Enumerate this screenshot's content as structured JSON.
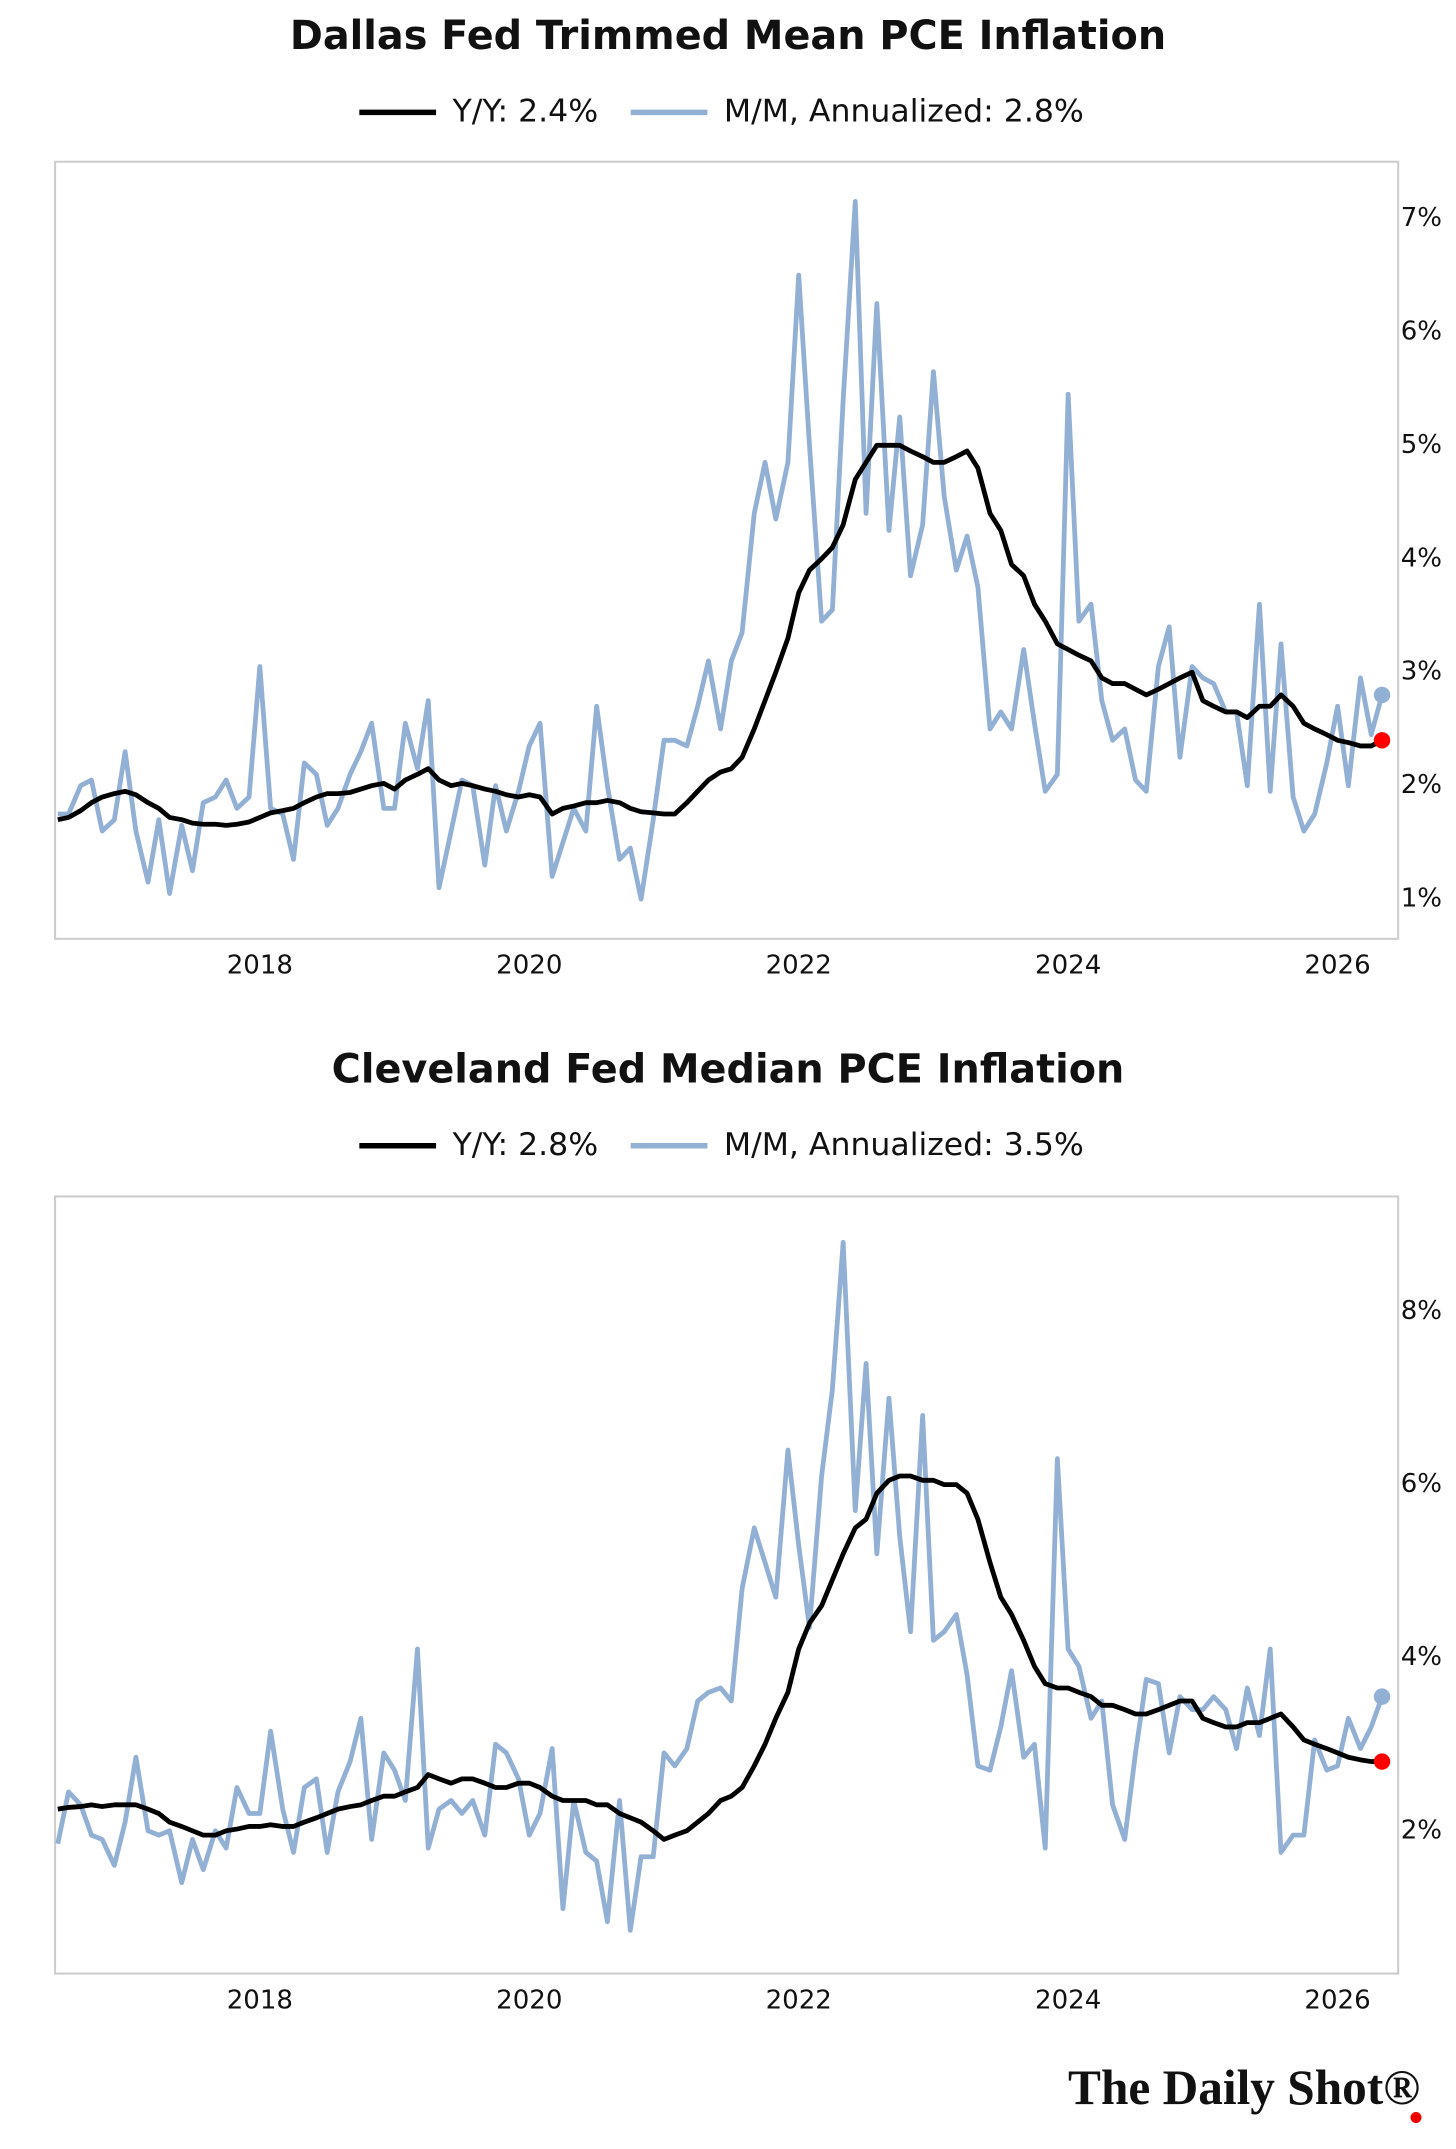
{
  "chart_data": [
    {
      "type": "line",
      "title": "Dallas Fed Trimmed Mean PCE Inflation",
      "grid": false,
      "x": [
        2016.5,
        2016.58,
        2016.67,
        2016.75,
        2016.83,
        2016.92,
        2017.0,
        2017.08,
        2017.17,
        2017.25,
        2017.33,
        2017.42,
        2017.5,
        2017.58,
        2017.67,
        2017.75,
        2017.83,
        2017.92,
        2018.0,
        2018.08,
        2018.17,
        2018.25,
        2018.33,
        2018.42,
        2018.5,
        2018.58,
        2018.67,
        2018.75,
        2018.83,
        2018.92,
        2019.0,
        2019.08,
        2019.17,
        2019.25,
        2019.33,
        2019.42,
        2019.5,
        2019.58,
        2019.67,
        2019.75,
        2019.83,
        2019.92,
        2020.0,
        2020.08,
        2020.17,
        2020.25,
        2020.33,
        2020.42,
        2020.5,
        2020.58,
        2020.67,
        2020.75,
        2020.83,
        2020.92,
        2021.0,
        2021.08,
        2021.17,
        2021.25,
        2021.33,
        2021.42,
        2021.5,
        2021.58,
        2021.67,
        2021.75,
        2021.83,
        2021.92,
        2022.0,
        2022.08,
        2022.17,
        2022.25,
        2022.33,
        2022.42,
        2022.5,
        2022.58,
        2022.67,
        2022.75,
        2022.83,
        2022.92,
        2023.0,
        2023.08,
        2023.17,
        2023.25,
        2023.33,
        2023.42,
        2023.5,
        2023.58,
        2023.67,
        2023.75,
        2023.83,
        2023.92,
        2024.0,
        2024.08,
        2024.17,
        2024.25,
        2024.33,
        2024.42,
        2024.5,
        2024.58,
        2024.67,
        2024.75,
        2024.83,
        2024.92,
        2025.0,
        2025.08,
        2025.17,
        2025.25,
        2025.33,
        2025.42,
        2025.5,
        2025.58,
        2025.67,
        2025.75,
        2025.83,
        2025.92,
        2026.0,
        2026.08,
        2026.17,
        2026.25,
        2026.33
      ],
      "series": [
        {
          "name": "Y/Y: 2.4%",
          "color": "#000000",
          "marker_color": "#ff0000",
          "values": [
            1.7,
            1.72,
            1.78,
            1.85,
            1.9,
            1.93,
            1.95,
            1.92,
            1.85,
            1.8,
            1.72,
            1.7,
            1.67,
            1.66,
            1.66,
            1.65,
            1.66,
            1.68,
            1.72,
            1.76,
            1.78,
            1.8,
            1.85,
            1.9,
            1.93,
            1.93,
            1.94,
            1.97,
            2.0,
            2.02,
            1.97,
            2.05,
            2.1,
            2.15,
            2.05,
            2.0,
            2.02,
            2.0,
            1.97,
            1.95,
            1.92,
            1.9,
            1.92,
            1.9,
            1.75,
            1.8,
            1.82,
            1.85,
            1.85,
            1.87,
            1.85,
            1.8,
            1.77,
            1.76,
            1.75,
            1.75,
            1.85,
            1.95,
            2.05,
            2.12,
            2.15,
            2.25,
            2.5,
            2.75,
            3.0,
            3.3,
            3.7,
            3.9,
            4.0,
            4.1,
            4.3,
            4.7,
            4.85,
            5.0,
            5.0,
            5.0,
            4.95,
            4.9,
            4.85,
            4.85,
            4.9,
            4.95,
            4.8,
            4.4,
            4.25,
            3.95,
            3.85,
            3.6,
            3.45,
            3.25,
            3.2,
            3.15,
            3.1,
            2.95,
            2.9,
            2.9,
            2.85,
            2.8,
            2.85,
            2.9,
            2.95,
            3.0,
            2.75,
            2.7,
            2.65,
            2.65,
            2.6,
            2.7,
            2.7,
            2.8,
            2.7,
            2.55,
            2.5,
            2.45,
            2.4,
            2.38,
            2.35,
            2.35,
            2.4
          ]
        },
        {
          "name": "M/M, Annualized: 2.8%",
          "color": "#92b0d4",
          "marker_color": "#92b0d4",
          "values": [
            1.75,
            1.75,
            2.0,
            2.05,
            1.6,
            1.7,
            2.3,
            1.6,
            1.15,
            1.7,
            1.05,
            1.65,
            1.25,
            1.85,
            1.9,
            2.05,
            1.8,
            1.9,
            3.05,
            1.8,
            1.75,
            1.35,
            2.2,
            2.1,
            1.65,
            1.8,
            2.1,
            2.3,
            2.55,
            1.8,
            1.8,
            2.55,
            2.15,
            2.75,
            1.1,
            1.6,
            2.05,
            2.0,
            1.3,
            2.0,
            1.6,
            1.95,
            2.35,
            2.55,
            1.2,
            1.5,
            1.8,
            1.6,
            2.7,
            2.0,
            1.35,
            1.45,
            1.0,
            1.7,
            2.4,
            2.4,
            2.35,
            2.7,
            3.1,
            2.5,
            3.1,
            3.35,
            4.4,
            4.85,
            4.35,
            4.85,
            6.5,
            5.0,
            3.45,
            3.55,
            5.4,
            7.15,
            4.4,
            6.25,
            4.25,
            5.25,
            3.85,
            4.3,
            5.65,
            4.55,
            3.9,
            4.2,
            3.75,
            2.5,
            2.65,
            2.5,
            3.2,
            2.55,
            1.95,
            2.1,
            5.45,
            3.45,
            3.6,
            2.75,
            2.4,
            2.5,
            2.05,
            1.95,
            3.05,
            3.4,
            2.25,
            3.05,
            2.95,
            2.9,
            2.65,
            2.65,
            2.0,
            3.6,
            1.95,
            3.25,
            1.9,
            1.6,
            1.75,
            2.2,
            2.7,
            2.0,
            2.95,
            2.45,
            2.8
          ]
        }
      ],
      "xlim": [
        2016.48,
        2026.45
      ],
      "xticks": [
        2018,
        2020,
        2022,
        2024,
        2026
      ],
      "ylim": [
        0.65,
        7.5
      ],
      "yticks": [
        {
          "value": 1,
          "label": "1%"
        },
        {
          "value": 2,
          "label": "2%"
        },
        {
          "value": 3,
          "label": "3%"
        },
        {
          "value": 4,
          "label": "4%"
        },
        {
          "value": 5,
          "label": "5%"
        },
        {
          "value": 6,
          "label": "6%"
        },
        {
          "value": 7,
          "label": "7%"
        }
      ]
    },
    {
      "type": "line",
      "title": "Cleveland Fed Median PCE Inflation",
      "grid": false,
      "x": [
        2016.5,
        2016.58,
        2016.67,
        2016.75,
        2016.83,
        2016.92,
        2017.0,
        2017.08,
        2017.17,
        2017.25,
        2017.33,
        2017.42,
        2017.5,
        2017.58,
        2017.67,
        2017.75,
        2017.83,
        2017.92,
        2018.0,
        2018.08,
        2018.17,
        2018.25,
        2018.33,
        2018.42,
        2018.5,
        2018.58,
        2018.67,
        2018.75,
        2018.83,
        2018.92,
        2019.0,
        2019.08,
        2019.17,
        2019.25,
        2019.33,
        2019.42,
        2019.5,
        2019.58,
        2019.67,
        2019.75,
        2019.83,
        2019.92,
        2020.0,
        2020.08,
        2020.17,
        2020.25,
        2020.33,
        2020.42,
        2020.5,
        2020.58,
        2020.67,
        2020.75,
        2020.83,
        2020.92,
        2021.0,
        2021.08,
        2021.17,
        2021.25,
        2021.33,
        2021.42,
        2021.5,
        2021.58,
        2021.67,
        2021.75,
        2021.83,
        2021.92,
        2022.0,
        2022.08,
        2022.17,
        2022.25,
        2022.33,
        2022.42,
        2022.5,
        2022.58,
        2022.67,
        2022.75,
        2022.83,
        2022.92,
        2023.0,
        2023.08,
        2023.17,
        2023.25,
        2023.33,
        2023.42,
        2023.5,
        2023.58,
        2023.67,
        2023.75,
        2023.83,
        2023.92,
        2024.0,
        2024.08,
        2024.17,
        2024.25,
        2024.33,
        2024.42,
        2024.5,
        2024.58,
        2024.67,
        2024.75,
        2024.83,
        2024.92,
        2025.0,
        2025.08,
        2025.17,
        2025.25,
        2025.33,
        2025.42,
        2025.5,
        2025.58,
        2025.67,
        2025.75,
        2025.83,
        2025.92,
        2026.0,
        2026.08,
        2026.17,
        2026.25,
        2026.33
      ],
      "series": [
        {
          "name": "Y/Y: 2.8%",
          "color": "#000000",
          "marker_color": "#ff0000",
          "values": [
            2.25,
            2.27,
            2.28,
            2.3,
            2.28,
            2.3,
            2.3,
            2.3,
            2.25,
            2.2,
            2.1,
            2.05,
            2.0,
            1.95,
            1.95,
            2.0,
            2.02,
            2.05,
            2.05,
            2.07,
            2.05,
            2.05,
            2.1,
            2.15,
            2.2,
            2.25,
            2.28,
            2.3,
            2.35,
            2.4,
            2.4,
            2.45,
            2.5,
            2.65,
            2.6,
            2.55,
            2.6,
            2.6,
            2.55,
            2.5,
            2.5,
            2.55,
            2.55,
            2.5,
            2.4,
            2.35,
            2.35,
            2.35,
            2.3,
            2.3,
            2.2,
            2.15,
            2.1,
            2.0,
            1.9,
            1.95,
            2.0,
            2.1,
            2.2,
            2.35,
            2.4,
            2.5,
            2.75,
            3.0,
            3.3,
            3.6,
            4.1,
            4.4,
            4.6,
            4.9,
            5.2,
            5.5,
            5.6,
            5.9,
            6.05,
            6.1,
            6.1,
            6.05,
            6.05,
            6.0,
            6.0,
            5.9,
            5.6,
            5.1,
            4.7,
            4.5,
            4.2,
            3.9,
            3.7,
            3.65,
            3.65,
            3.6,
            3.55,
            3.45,
            3.45,
            3.4,
            3.35,
            3.35,
            3.4,
            3.45,
            3.5,
            3.5,
            3.3,
            3.25,
            3.2,
            3.2,
            3.25,
            3.25,
            3.3,
            3.35,
            3.2,
            3.05,
            3.0,
            2.95,
            2.9,
            2.85,
            2.82,
            2.8,
            2.8
          ]
        },
        {
          "name": "M/M, Annualized: 3.5%",
          "color": "#92b0d4",
          "marker_color": "#92b0d4",
          "values": [
            1.85,
            2.45,
            2.3,
            1.95,
            1.9,
            1.6,
            2.1,
            2.85,
            2.0,
            1.95,
            2.0,
            1.4,
            1.9,
            1.55,
            2.0,
            1.8,
            2.5,
            2.2,
            2.2,
            3.15,
            2.25,
            1.75,
            2.5,
            2.6,
            1.75,
            2.45,
            2.8,
            3.3,
            1.9,
            2.9,
            2.7,
            2.35,
            4.1,
            1.8,
            2.25,
            2.35,
            2.2,
            2.35,
            1.95,
            3.0,
            2.9,
            2.6,
            1.95,
            2.2,
            2.95,
            1.1,
            2.35,
            1.75,
            1.65,
            0.95,
            2.35,
            0.85,
            1.7,
            1.7,
            2.9,
            2.75,
            2.95,
            3.5,
            3.6,
            3.65,
            3.5,
            4.8,
            5.5,
            5.1,
            4.7,
            6.4,
            5.3,
            4.35,
            6.1,
            7.1,
            8.8,
            5.7,
            7.4,
            5.2,
            7.0,
            5.4,
            4.3,
            6.8,
            4.2,
            4.3,
            4.5,
            3.8,
            2.75,
            2.7,
            3.2,
            3.85,
            2.85,
            3.0,
            1.8,
            6.3,
            4.1,
            3.9,
            3.3,
            3.5,
            2.3,
            1.9,
            2.9,
            3.75,
            3.7,
            2.9,
            3.55,
            3.4,
            3.4,
            3.55,
            3.4,
            2.95,
            3.65,
            3.1,
            4.1,
            1.75,
            1.95,
            1.95,
            3.05,
            2.7,
            2.75,
            3.3,
            2.95,
            3.2,
            3.55
          ]
        }
      ],
      "xlim": [
        2016.48,
        2026.45
      ],
      "xticks": [
        2018,
        2020,
        2022,
        2024,
        2026
      ],
      "ylim": [
        0.35,
        9.33
      ],
      "yticks": [
        {
          "value": 2,
          "label": "2%"
        },
        {
          "value": 4,
          "label": "4%"
        },
        {
          "value": 6,
          "label": "6%"
        },
        {
          "value": 8,
          "label": "8%"
        }
      ]
    }
  ],
  "footer": "The Daily Shot®"
}
